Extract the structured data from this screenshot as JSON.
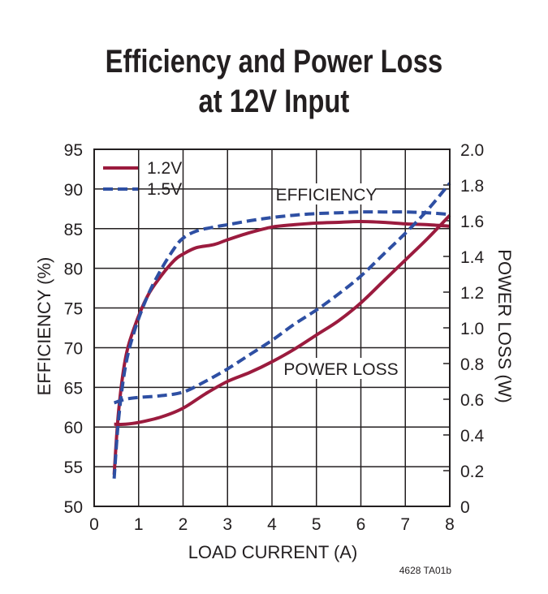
{
  "title_line1": "Efficiency and Power Loss",
  "title_line2": "at 12V Input",
  "figure_id": "4628 TA01b",
  "chart_data": {
    "type": "line",
    "xlabel": "LOAD CURRENT (A)",
    "ylabel_left": "EFFICIENCY (%)",
    "ylabel_right": "POWER LOSS (W)",
    "xlim": [
      0,
      8
    ],
    "ylim_left": [
      50,
      95
    ],
    "ylim_right": [
      0,
      2.0
    ],
    "x_ticks": [
      "0",
      "1",
      "2",
      "3",
      "4",
      "5",
      "6",
      "7",
      "8"
    ],
    "y_ticks_left": [
      "50",
      "55",
      "60",
      "65",
      "70",
      "75",
      "80",
      "85",
      "90",
      "95"
    ],
    "y_ticks_right": [
      "0",
      "0.2",
      "0.4",
      "0.6",
      "0.8",
      "1.0",
      "1.2",
      "1.4",
      "1.6",
      "1.8",
      "2.0"
    ],
    "grid": true,
    "legend": {
      "placement": "top-left",
      "entries": [
        "1.2V",
        "1.5V"
      ]
    },
    "annotations": {
      "efficiency": "EFFICIENCY",
      "power_loss": "POWER LOSS"
    },
    "colors": {
      "v12": "#9b1b3e",
      "v15": "#2e4fa3",
      "grid": "#231f20"
    },
    "series": [
      {
        "name": "1.2V",
        "kind": "efficiency",
        "axis": "left",
        "style": "solid",
        "x": [
          0.45,
          0.55,
          0.7,
          0.9,
          1.2,
          1.5,
          1.8,
          2.0,
          2.3,
          2.7,
          3.0,
          3.5,
          4.0,
          4.5,
          5.0,
          5.5,
          6.0,
          6.5,
          7.0,
          7.5,
          8.0
        ],
        "y": [
          54.0,
          62.0,
          68.5,
          72.5,
          76.5,
          79.0,
          81.0,
          81.8,
          82.6,
          83.0,
          83.6,
          84.5,
          85.2,
          85.5,
          85.7,
          85.8,
          85.9,
          85.8,
          85.6,
          85.5,
          85.3
        ]
      },
      {
        "name": "1.5V",
        "kind": "efficiency",
        "axis": "left",
        "style": "dashed",
        "x": [
          0.45,
          0.55,
          0.7,
          0.9,
          1.2,
          1.5,
          1.8,
          2.0,
          2.3,
          2.7,
          3.0,
          3.5,
          4.0,
          4.5,
          5.0,
          5.5,
          6.0,
          6.5,
          7.0,
          7.5,
          8.0
        ],
        "y": [
          53.5,
          61.0,
          67.5,
          72.0,
          76.5,
          79.8,
          82.5,
          83.8,
          84.7,
          85.2,
          85.5,
          86.0,
          86.4,
          86.7,
          86.9,
          87.0,
          87.1,
          87.1,
          87.1,
          87.0,
          86.8
        ]
      },
      {
        "name": "1.2V",
        "kind": "power_loss",
        "axis": "right",
        "style": "solid",
        "x": [
          0.45,
          0.7,
          1.0,
          1.5,
          2.0,
          2.5,
          3.0,
          3.5,
          4.0,
          4.5,
          5.0,
          5.5,
          6.0,
          6.5,
          7.0,
          7.5,
          8.0
        ],
        "y": [
          0.46,
          0.46,
          0.47,
          0.5,
          0.55,
          0.63,
          0.7,
          0.75,
          0.81,
          0.88,
          0.96,
          1.04,
          1.14,
          1.26,
          1.38,
          1.5,
          1.63
        ]
      },
      {
        "name": "1.5V",
        "kind": "power_loss",
        "axis": "right",
        "style": "dashed",
        "x": [
          0.45,
          0.7,
          1.0,
          1.5,
          2.0,
          2.5,
          3.0,
          3.5,
          4.0,
          4.5,
          5.0,
          5.5,
          6.0,
          6.5,
          7.0,
          7.5,
          8.0
        ],
        "y": [
          0.58,
          0.6,
          0.61,
          0.62,
          0.64,
          0.7,
          0.77,
          0.85,
          0.93,
          1.02,
          1.1,
          1.19,
          1.29,
          1.41,
          1.53,
          1.66,
          1.81
        ]
      }
    ]
  }
}
